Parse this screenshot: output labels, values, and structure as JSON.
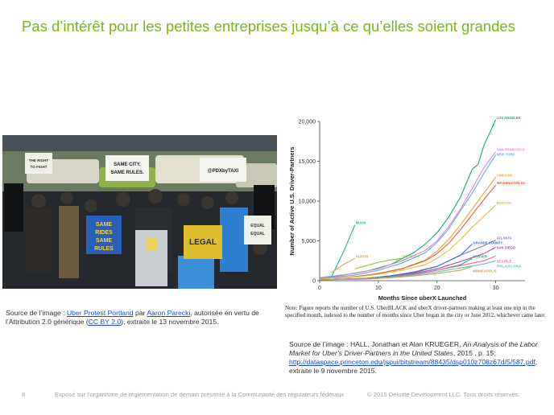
{
  "slide": {
    "title": "Pas d’intérêt pour les petites entreprises jusqu’à ce qu’elles soient grandes",
    "page_number": "8",
    "footer_text": "Exposé sur l’organisme de réglementation de demain présenté à la Communauté des régulateurs fédéraux",
    "copyright": "© 2015 Deloitte Development LLC. Tous droits réservés."
  },
  "photo": {
    "signs": {
      "same_city": [
        "SAME CITY.",
        "SAME RULES."
      ],
      "pdx": "@PDXbyTAXI",
      "same_rides": [
        "SAME",
        "RIDES",
        "SAME",
        "RULES"
      ],
      "legal": "LEGAL",
      "small_left": [
        "THE RIGHT",
        "TO FIGHT"
      ],
      "small_right": [
        "EQUAL",
        "EQUAL"
      ]
    },
    "caption": {
      "prefix": "Source de l’image : ",
      "link1": "Uber Protest Portland",
      "mid1": " par ",
      "link2": "Aaron Parecki",
      "mid2": ", autorisée en vertu de l’Attribution 2.0 générique (",
      "link3": "CC BY 2.0",
      "suffix": "); extraite le 13 novembre 2015."
    }
  },
  "chart_data": {
    "type": "line",
    "ylabel": "Number of Active U.S. Driver-Partners",
    "xlabel": "Months Since uberX Launched",
    "xlim": [
      0,
      35
    ],
    "ylim": [
      0,
      20000
    ],
    "xticks": [
      0,
      10,
      20,
      30
    ],
    "yticks": [
      0,
      5000,
      10000,
      15000,
      20000
    ],
    "ytick_labels": [
      "0",
      "5,000",
      "10,000",
      "15,000",
      "20,000"
    ],
    "grid": false,
    "series": [
      {
        "name": "LOS ANGELES",
        "color": "#1fa77a",
        "x": [
          0,
          4,
          8,
          12,
          16,
          18,
          20,
          22,
          24,
          26,
          27,
          28,
          30
        ],
        "y": [
          300,
          700,
          1200,
          2000,
          3500,
          4600,
          6000,
          8000,
          10500,
          14000,
          14600,
          17000,
          20200
        ]
      },
      {
        "name": "SAN FRANCISCO",
        "color": "#d88ad0",
        "x": [
          0,
          6,
          10,
          14,
          18,
          20,
          22,
          24,
          26,
          28,
          30
        ],
        "y": [
          400,
          900,
          1500,
          2500,
          3800,
          5000,
          6800,
          9000,
          11600,
          14200,
          16200
        ]
      },
      {
        "name": "NEW YORK",
        "color": "#6aa6e8",
        "x": [
          0,
          6,
          10,
          14,
          18,
          20,
          22,
          24,
          26,
          28,
          30
        ],
        "y": [
          300,
          700,
          1300,
          2200,
          3500,
          4800,
          6500,
          8800,
          11000,
          13500,
          15800
        ]
      },
      {
        "name": "CHICAGO",
        "color": "#e0a431",
        "x": [
          0,
          6,
          10,
          14,
          18,
          20,
          22,
          24,
          26,
          28,
          30
        ],
        "y": [
          200,
          500,
          900,
          1500,
          2600,
          3700,
          5200,
          7000,
          9000,
          11000,
          13000
        ]
      },
      {
        "name": "WASHINGTON DC",
        "color": "#d9603b",
        "x": [
          0,
          6,
          10,
          14,
          18,
          20,
          22,
          24,
          26,
          28,
          30
        ],
        "y": [
          200,
          500,
          900,
          1500,
          2500,
          3400,
          4700,
          6400,
          8300,
          10200,
          12000
        ]
      },
      {
        "name": "BOSTON",
        "color": "#e2c23a",
        "x": [
          0,
          6,
          10,
          14,
          18,
          20,
          22,
          24,
          26,
          28,
          30
        ],
        "y": [
          200,
          450,
          800,
          1300,
          2000,
          2800,
          3800,
          5200,
          6700,
          8100,
          9500
        ]
      },
      {
        "name": "ATLANTA",
        "color": "#8a6fd1",
        "x": [
          0,
          8,
          12,
          16,
          20,
          22,
          24,
          26,
          28,
          30
        ],
        "y": [
          100,
          300,
          600,
          1100,
          1800,
          2500,
          3200,
          3800,
          4400,
          5100
        ]
      },
      {
        "name": "GRANDE COUNTY",
        "color": "#3a6fc4",
        "x": [
          0,
          8,
          12,
          16,
          20,
          22,
          24,
          26
        ],
        "y": [
          100,
          300,
          600,
          1000,
          1800,
          2500,
          3200,
          4600
        ]
      },
      {
        "name": "SAN DIEGO",
        "color": "#b24fa8",
        "x": [
          0,
          8,
          12,
          16,
          20,
          24,
          28,
          30
        ],
        "y": [
          100,
          300,
          500,
          900,
          1500,
          2400,
          3400,
          4200
        ]
      },
      {
        "name": "DENVER",
        "color": "#3c9a58",
        "x": [
          0,
          8,
          12,
          16,
          20,
          24,
          26
        ],
        "y": [
          100,
          250,
          500,
          800,
          1300,
          2000,
          2800
        ]
      },
      {
        "name": "SEATTLE",
        "color": "#e06fa8",
        "x": [
          0,
          8,
          12,
          16,
          20,
          24,
          28,
          30
        ],
        "y": [
          100,
          250,
          450,
          800,
          1300,
          1900,
          2500,
          3100
        ]
      },
      {
        "name": "PHILADELPHIA",
        "color": "#6fc2c4",
        "x": [
          0,
          8,
          12,
          16,
          20,
          24,
          28,
          30
        ],
        "y": [
          100,
          200,
          400,
          700,
          1100,
          1600,
          2100,
          2500
        ]
      },
      {
        "name": "MINNEAPOLIS",
        "color": "#b9a46a",
        "x": [
          0,
          8,
          12,
          16,
          20,
          24,
          26
        ],
        "y": [
          100,
          200,
          350,
          600,
          900,
          1300,
          1800
        ]
      },
      {
        "name": "HOUSTON",
        "color": "#8bc63f",
        "x": [
          6,
          8,
          10,
          12,
          14
        ],
        "y": [
          1500,
          1900,
          2300,
          2600,
          2800
        ]
      },
      {
        "name": "MIAMI",
        "color": "#27b89a",
        "x": [
          2,
          4,
          6
        ],
        "y": [
          500,
          3500,
          7000
        ]
      },
      {
        "name": "AUSTIN",
        "color": "#e89a4a",
        "x": [
          2,
          4,
          6
        ],
        "y": [
          1000,
          2000,
          2800
        ]
      }
    ],
    "label_offsets_note": "",
    "note": "Note: Figure reports the number of U.S. UberBLACK and uberX driver-partners making at least one trip in the specified month, indexed to the number of months since Uber began in the city or June 2012, whichever came later."
  },
  "chart_caption": {
    "prefix": "Source de l’image : HALL, Jonathan et Alan KRUEGER, ",
    "italic": "An Analysis of the Labor Market for Uber’s Driver-Partners in the United States",
    "mid": ", 2015 , p. 15; ",
    "link": "http://dataspace.princeton.edu/jspui/bitstream/88435/dsp010z708z67d/5/587.pdf",
    "suffix": ", extraite le 9 novembre 2015."
  },
  "colors": {
    "title_green": "#7cb518",
    "link_blue": "#1a4bd6",
    "footer_gray": "#a0a0a0"
  }
}
